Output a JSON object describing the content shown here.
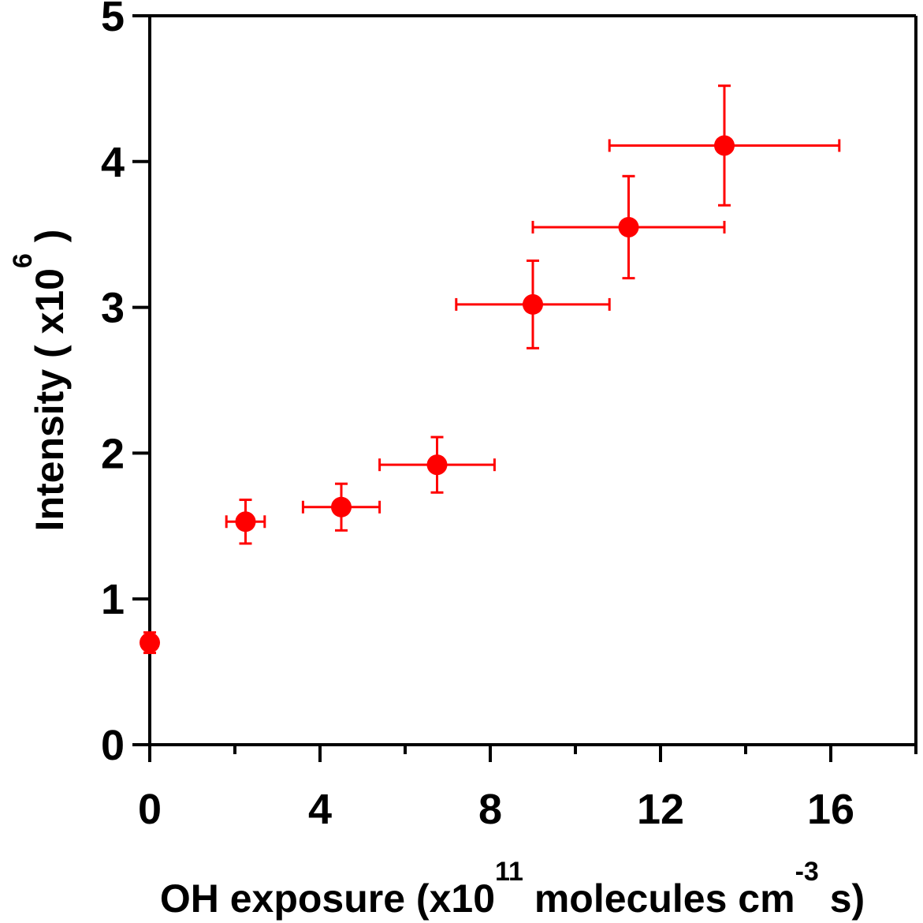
{
  "chart_data": {
    "type": "scatter",
    "xlabel": {
      "prefix": "OH exposure  (x10",
      "sup1": "11",
      "middle": " molecules cm",
      "sup2": "-3",
      "suffix": " s)"
    },
    "ylabel": {
      "prefix": "Intensity ( x10",
      "sup": "6",
      "suffix": " )"
    },
    "xlim": [
      0,
      18
    ],
    "ylim": [
      0,
      5
    ],
    "x_ticks_major": [
      0,
      4,
      8,
      12,
      16
    ],
    "x_tick_labels": [
      "0",
      "4",
      "8",
      "12",
      "16"
    ],
    "x_ticks_minor": [
      2,
      6,
      10,
      14,
      18
    ],
    "y_ticks": [
      0,
      1,
      2,
      3,
      4,
      5
    ],
    "y_tick_labels": [
      "0",
      "1",
      "2",
      "3",
      "4",
      "5"
    ],
    "grid": false,
    "legend": "none",
    "color": "#ff0000",
    "points": [
      {
        "x": 0.0,
        "y": 0.7,
        "xerr": 0.0,
        "yerr": 0.07
      },
      {
        "x": 2.25,
        "y": 1.53,
        "xerr": 0.45,
        "yerr": 0.15
      },
      {
        "x": 4.5,
        "y": 1.63,
        "xerr": 0.9,
        "yerr": 0.16
      },
      {
        "x": 6.75,
        "y": 1.92,
        "xerr": 1.35,
        "yerr": 0.19
      },
      {
        "x": 9.0,
        "y": 3.02,
        "xerr": 1.8,
        "yerr": 0.3
      },
      {
        "x": 11.25,
        "y": 3.55,
        "xerr": 2.25,
        "yerr": 0.35
      },
      {
        "x": 13.5,
        "y": 4.11,
        "xerr": 2.7,
        "yerr": 0.41
      }
    ]
  }
}
